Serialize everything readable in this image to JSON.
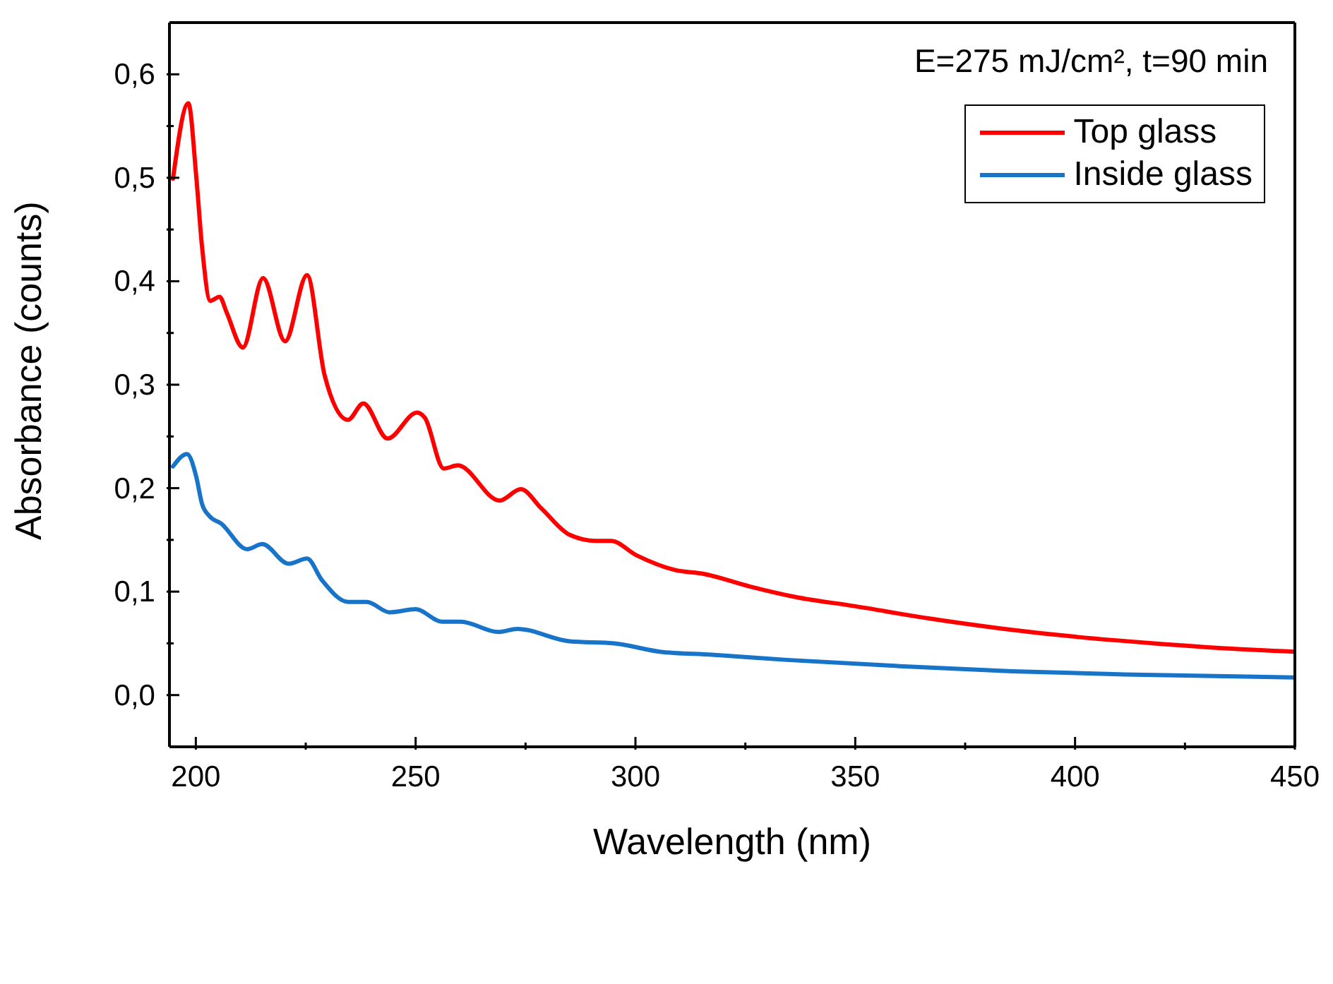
{
  "chart_data": {
    "type": "line",
    "xlabel": "Wavelength (nm)",
    "ylabel": "Absorbance (counts)",
    "annotations": [
      "E=275 mJ/cm², t=90 min"
    ],
    "xlim": [
      194,
      450
    ],
    "ylim": [
      -0.05,
      0.65
    ],
    "xticks": [
      200,
      {
        "value": 225,
        "label": null
      },
      250,
      {
        "value": 275,
        "label": null
      },
      300,
      {
        "value": 325,
        "label": null
      },
      350,
      {
        "value": 375,
        "label": null
      },
      400,
      {
        "value": 425,
        "label": null
      },
      450
    ],
    "yticks": [
      {
        "value": 0,
        "label": "0,0"
      },
      {
        "value": 0.05,
        "label": null
      },
      {
        "value": 0.1,
        "label": "0,1"
      },
      {
        "value": 0.15,
        "label": null
      },
      {
        "value": 0.2,
        "label": "0,2"
      },
      {
        "value": 0.25,
        "label": null
      },
      {
        "value": 0.3,
        "label": "0,3"
      },
      {
        "value": 0.35,
        "label": null
      },
      {
        "value": 0.4,
        "label": "0,4"
      },
      {
        "value": 0.45,
        "label": null
      },
      {
        "value": 0.5,
        "label": "0,5"
      },
      {
        "value": 0.55,
        "label": null
      },
      {
        "value": 0.6,
        "label": "0,6"
      }
    ],
    "grid": false,
    "legend": "top right",
    "marker": "none",
    "line_style": "solid",
    "series": [
      {
        "name": "Top glass",
        "color": "#ff0000",
        "x": [
          194.8,
          198.3,
          200.1,
          201.4,
          203.3,
          205.4,
          207,
          210.7,
          215.3,
          220.3,
          225.3,
          229.3,
          234.6,
          238.1,
          243.6,
          250.3,
          252.1,
          256.4,
          259.6,
          269.1,
          273.9,
          278.7,
          285,
          291,
          294.4,
          300.3,
          308.9,
          315.7,
          326,
          336.2,
          349.8,
          366.9,
          383.9,
          401,
          418,
          435.1,
          450
        ],
        "values": [
          0.499,
          0.572,
          0.501,
          0.434,
          0.381,
          0.385,
          0.37,
          0.336,
          0.403,
          0.342,
          0.406,
          0.309,
          0.266,
          0.282,
          0.248,
          0.273,
          0.268,
          0.219,
          0.222,
          0.188,
          0.199,
          0.18,
          0.155,
          0.149,
          0.149,
          0.135,
          0.121,
          0.117,
          0.105,
          0.095,
          0.086,
          0.074,
          0.064,
          0.056,
          0.05,
          0.045,
          0.042
        ]
      },
      {
        "name": "Inside glass",
        "color": "#1874c8",
        "x": [
          194.8,
          198,
          200.1,
          201.4,
          203.1,
          205.7,
          211.7,
          215.1,
          221.1,
          225.3,
          228.7,
          234.7,
          238.9,
          244.1,
          250,
          256,
          260.3,
          268.8,
          273.1,
          285,
          295.2,
          305.5,
          317.4,
          334.5,
          360.1,
          385.7,
          411.2,
          450
        ],
        "values": [
          0.221,
          0.233,
          0.211,
          0.185,
          0.173,
          0.166,
          0.141,
          0.146,
          0.127,
          0.132,
          0.111,
          0.09,
          0.09,
          0.08,
          0.083,
          0.071,
          0.071,
          0.061,
          0.064,
          0.052,
          0.05,
          0.042,
          0.039,
          0.034,
          0.028,
          0.023,
          0.02,
          0.017
        ]
      }
    ]
  }
}
